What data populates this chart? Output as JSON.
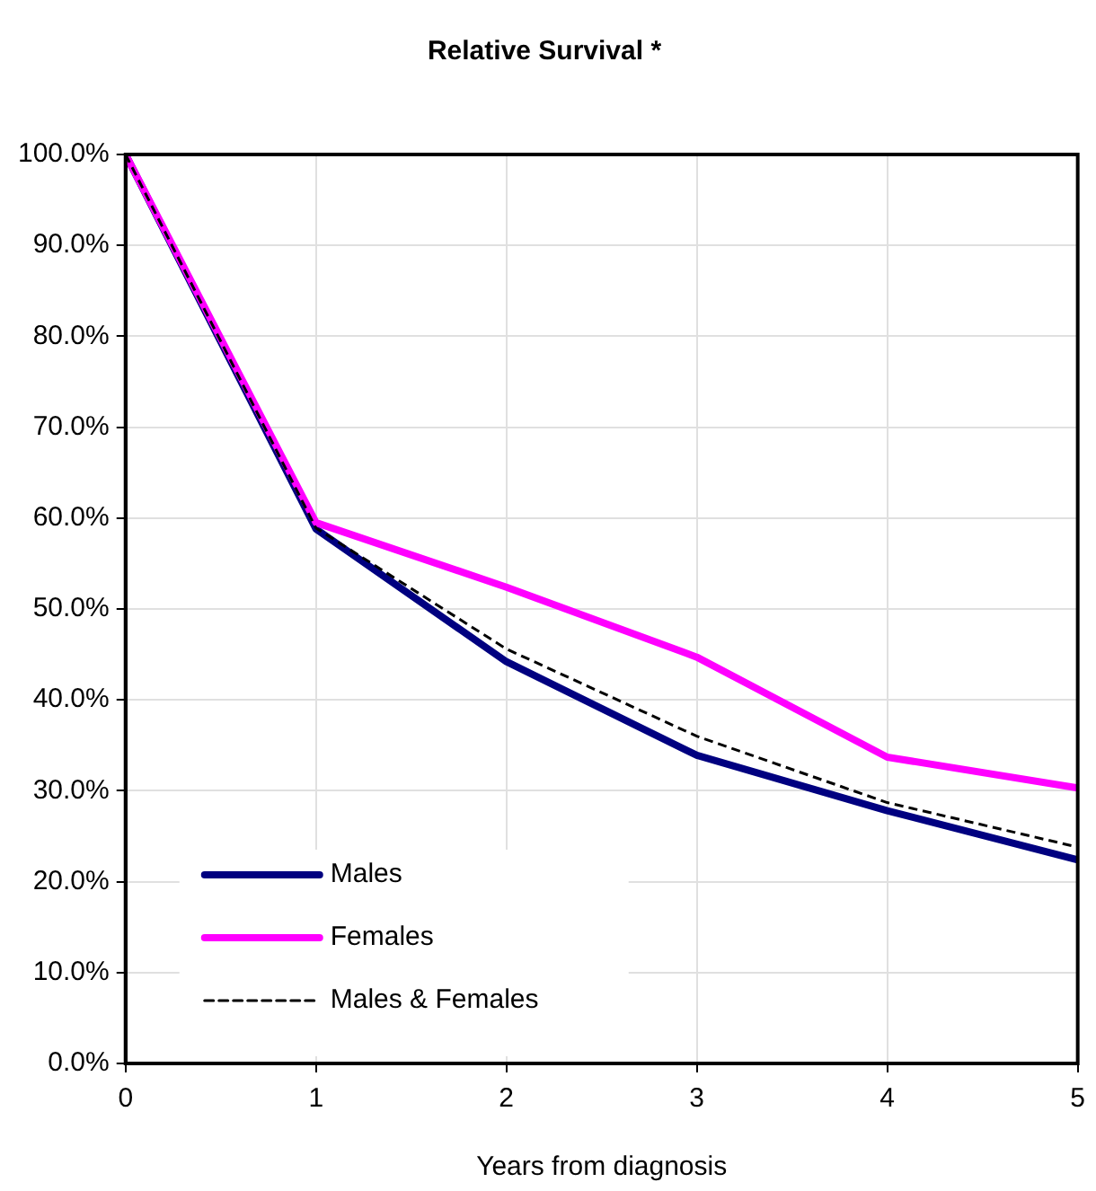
{
  "chart_data": {
    "type": "line",
    "title": "Relative Survival *",
    "xlabel": "Years from diagnosis",
    "x": [
      0,
      1,
      2,
      3,
      4,
      5
    ],
    "xlim": [
      0,
      5
    ],
    "xticks": [
      0,
      1,
      2,
      3,
      4,
      5
    ],
    "ylim": [
      0,
      100
    ],
    "yticks": [
      {
        "value": 0,
        "label": "0.0%"
      },
      {
        "value": 10,
        "label": "10.0%"
      },
      {
        "value": 20,
        "label": "20.0%"
      },
      {
        "value": 30,
        "label": "30.0%"
      },
      {
        "value": 40,
        "label": "40.0%"
      },
      {
        "value": 50,
        "label": "50.0%"
      },
      {
        "value": 60,
        "label": "60.0%"
      },
      {
        "value": 70,
        "label": "70.0%"
      },
      {
        "value": 80,
        "label": "80.0%"
      },
      {
        "value": 90,
        "label": "90.0%"
      },
      {
        "value": 100,
        "label": "100.0%"
      }
    ],
    "grid": true,
    "legend": "bottom left",
    "marker": "none",
    "series": [
      {
        "name": "Males",
        "color": "#000080",
        "values": [
          100,
          58.8,
          44.2,
          33.9,
          27.8,
          22.4
        ]
      },
      {
        "name": "Females",
        "color": "#ff00ff",
        "values": [
          100,
          59.5,
          52.4,
          44.7,
          33.7,
          30.3
        ]
      },
      {
        "name": "Males & Females",
        "color": "#000000",
        "line_style": "dashed",
        "values": [
          100,
          58.9,
          45.6,
          36.0,
          28.7,
          23.8
        ]
      }
    ]
  }
}
